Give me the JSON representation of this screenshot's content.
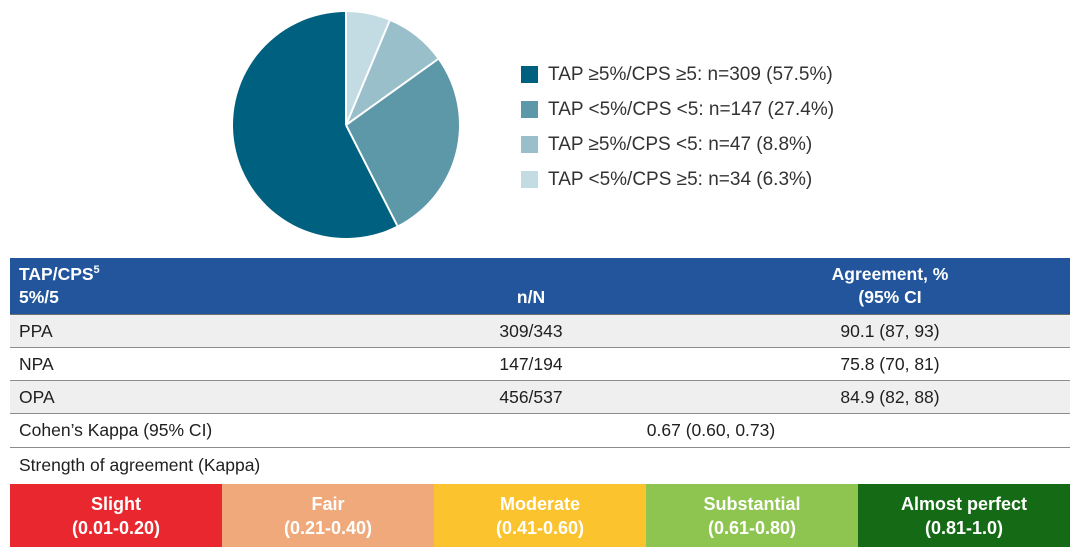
{
  "chart_data": {
    "type": "pie",
    "legend_position": "right",
    "start_angle": "top",
    "note": "slices drawn clockwise from 12 o'clock in reverse legend order",
    "slices": [
      {
        "label": "TAP ≥5%/CPS ≥5: n=309 (57.5%)",
        "category": "TAP ≥5%/CPS ≥5",
        "n": 309,
        "pct": 57.5,
        "color": "#00607f"
      },
      {
        "label": "TAP <5%/CPS <5: n=147 (27.4%)",
        "category": "TAP <5%/CPS <5",
        "n": 147,
        "pct": 27.4,
        "color": "#5d98a9"
      },
      {
        "label": "TAP ≥5%/CPS <5: n=47 (8.8%)",
        "category": "TAP ≥5%/CPS <5",
        "n": 47,
        "pct": 8.8,
        "color": "#99bfcb"
      },
      {
        "label": "TAP <5%/CPS ≥5: n=34 (6.3%)",
        "category": "TAP <5%/CPS ≥5",
        "n": 34,
        "pct": 6.3,
        "color": "#c3dbe3"
      }
    ]
  },
  "table": {
    "header": {
      "col1_line1": "TAP/CPS",
      "col1_sup": "5",
      "col1_line2": "5%/5",
      "col2": "n/N",
      "col3_line1": "Agreement, %",
      "col3_line2": "(95% CI"
    },
    "rows": [
      {
        "label": "PPA",
        "n_N": "309/343",
        "agreement": "90.1 (87, 93)"
      },
      {
        "label": "NPA",
        "n_N": "147/194",
        "agreement": "75.8 (70, 81)"
      },
      {
        "label": "OPA",
        "n_N": "456/537",
        "agreement": "84.9 (82, 88)"
      }
    ],
    "kappa_label": "Cohen’s Kappa (95% CI)",
    "kappa_value": "0.67 (0.60, 0.73)",
    "strength_label": "Strength of agreement (Kappa)"
  },
  "kappa_scale": [
    {
      "label": "Slight",
      "range": "(0.01-0.20)",
      "color": "#e8282e"
    },
    {
      "label": "Fair",
      "range": "(0.21-0.40)",
      "color": "#efa97a"
    },
    {
      "label": "Moderate",
      "range": "(0.41-0.60)",
      "color": "#fbc32d"
    },
    {
      "label": "Substantial",
      "range": "(0.61-0.80)",
      "color": "#8ec550"
    },
    {
      "label": "Almost perfect",
      "range": "(0.81-1.0)",
      "color": "#156b15"
    }
  ],
  "colors": {
    "header_bg": "#22559c",
    "row_alt_bg": "#efefef",
    "border": "#8c8c8c",
    "slice_separator": "#ffffff"
  }
}
